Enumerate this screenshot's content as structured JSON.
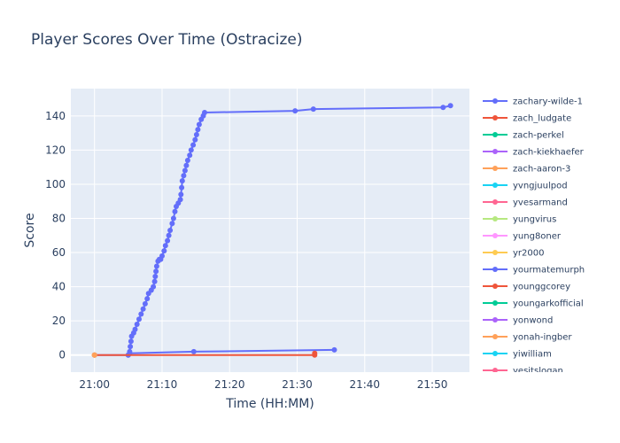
{
  "chart_data": {
    "type": "line",
    "title": "Player Scores Over Time (Ostracize)",
    "xlabel": "Time (HH:MM)",
    "ylabel": "Score",
    "x_ticks": [
      "21:00",
      "21:10",
      "21:20",
      "21:30",
      "21:40",
      "21:50"
    ],
    "y_ticks": [
      0,
      20,
      40,
      60,
      80,
      100,
      120,
      140
    ],
    "xlim_minutes_from_2100": [
      -3.5,
      55.5
    ],
    "ylim": [
      -10,
      156
    ],
    "grid": true,
    "legend_position": "right",
    "series": [
      {
        "name": "zachary-wilde-1",
        "color": "#636efa",
        "points": [
          [
            5.0,
            0
          ],
          [
            5.2,
            2
          ],
          [
            5.3,
            5
          ],
          [
            5.4,
            8
          ],
          [
            5.5,
            11
          ],
          [
            5.8,
            13
          ],
          [
            6.0,
            15
          ],
          [
            6.3,
            18
          ],
          [
            6.6,
            21
          ],
          [
            6.9,
            24
          ],
          [
            7.2,
            27
          ],
          [
            7.5,
            30
          ],
          [
            7.8,
            33
          ],
          [
            8.0,
            36
          ],
          [
            8.4,
            38
          ],
          [
            8.7,
            40
          ],
          [
            8.9,
            43
          ],
          [
            9.0,
            46
          ],
          [
            9.1,
            49
          ],
          [
            9.2,
            52
          ],
          [
            9.4,
            55
          ],
          [
            9.6,
            56
          ],
          [
            9.8,
            56
          ],
          [
            10.0,
            58
          ],
          [
            10.3,
            61
          ],
          [
            10.5,
            64
          ],
          [
            10.8,
            67
          ],
          [
            11.0,
            70
          ],
          [
            11.2,
            73
          ],
          [
            11.5,
            77
          ],
          [
            11.7,
            80
          ],
          [
            11.9,
            84
          ],
          [
            12.1,
            87
          ],
          [
            12.4,
            89
          ],
          [
            12.7,
            91
          ],
          [
            12.8,
            94
          ],
          [
            12.9,
            98
          ],
          [
            13.0,
            102
          ],
          [
            13.2,
            105
          ],
          [
            13.4,
            108
          ],
          [
            13.6,
            111
          ],
          [
            13.8,
            114
          ],
          [
            14.1,
            117
          ],
          [
            14.3,
            120
          ],
          [
            14.6,
            123
          ],
          [
            14.9,
            126
          ],
          [
            15.1,
            129
          ],
          [
            15.3,
            132
          ],
          [
            15.5,
            135
          ],
          [
            15.8,
            138
          ],
          [
            16.1,
            140
          ],
          [
            16.3,
            142
          ],
          [
            29.7,
            143
          ],
          [
            32.4,
            144
          ],
          [
            51.6,
            145
          ],
          [
            52.7,
            146
          ]
        ]
      },
      {
        "name": "yourmatemurph",
        "color": "#636efa",
        "points": [
          [
            0,
            0
          ],
          [
            5.0,
            0
          ],
          [
            5.2,
            1
          ],
          [
            14.7,
            2
          ],
          [
            35.5,
            3
          ]
        ]
      },
      {
        "name": "zach_ludgate",
        "color": "#ef553b",
        "points": [
          [
            0,
            0
          ],
          [
            32.6,
            0
          ],
          [
            32.6,
            1
          ]
        ]
      },
      {
        "name": "yr2000",
        "color": "#fecb52",
        "points": [
          [
            0,
            0
          ]
        ]
      },
      {
        "name": "zach-aaron-3",
        "color": "#ffa15a",
        "points": [
          [
            0,
            0
          ]
        ]
      }
    ]
  },
  "legend": [
    {
      "name": "zachary-wilde-1",
      "color": "#636efa"
    },
    {
      "name": "zach_ludgate",
      "color": "#ef553b"
    },
    {
      "name": "zach-perkel",
      "color": "#00cc96"
    },
    {
      "name": "zach-kiekhaefer",
      "color": "#ab63fa"
    },
    {
      "name": "zach-aaron-3",
      "color": "#ffa15a"
    },
    {
      "name": "yvngjuulpod",
      "color": "#19d3f3"
    },
    {
      "name": "yvesarmand",
      "color": "#ff6692"
    },
    {
      "name": "yungvirus",
      "color": "#b6e880"
    },
    {
      "name": "yung8oner",
      "color": "#ff97ff"
    },
    {
      "name": "yr2000",
      "color": "#fecb52"
    },
    {
      "name": "yourmatemurph",
      "color": "#636efa"
    },
    {
      "name": "younggcorey",
      "color": "#ef553b"
    },
    {
      "name": "youngarkofficial",
      "color": "#00cc96"
    },
    {
      "name": "yonwond",
      "color": "#ab63fa"
    },
    {
      "name": "yonah-ingber",
      "color": "#ffa15a"
    },
    {
      "name": "yiwilliam",
      "color": "#19d3f3"
    },
    {
      "name": "yesitslogan",
      "color": "#ff6692"
    }
  ]
}
